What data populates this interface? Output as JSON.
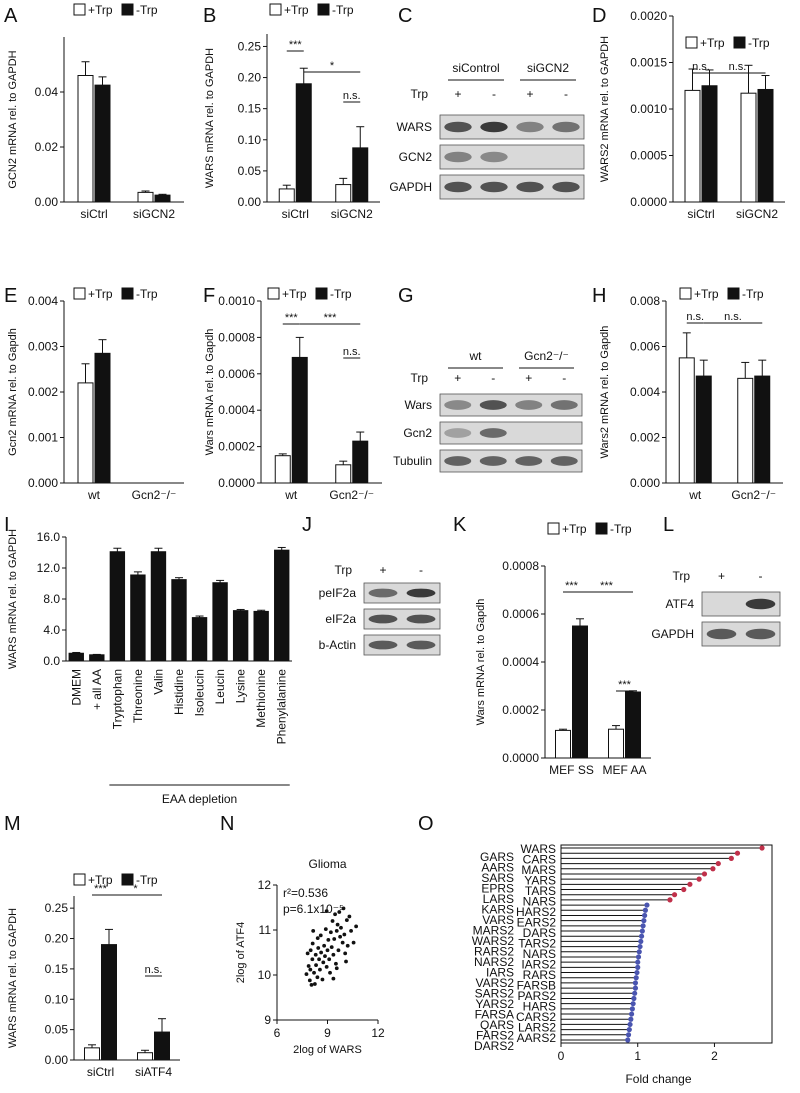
{
  "colors": {
    "filled": "#111111",
    "open": "#ffffff",
    "wars_highlight": "#d62728",
    "dot_red": "#c0304a",
    "dot_blue": "#4a55b0",
    "band": "#3a3a3a",
    "blot_bg": "#d9d9d9"
  },
  "chart_data": [
    {
      "panel": "A",
      "type": "bar",
      "ylabel": "GCN2 mRNA rel. to GAPDH",
      "categories": [
        "siCtrl",
        "siGCN2"
      ],
      "legend": [
        "+Trp",
        "-Trp"
      ],
      "ylim": [
        0,
        0.06
      ],
      "yticks": [
        "0.00",
        "0.02",
        "0.04"
      ],
      "ytick_values": [
        0,
        0.02,
        0.04
      ],
      "series": [
        {
          "name": "+Trp",
          "values": [
            0.046,
            0.0035
          ],
          "errors": [
            0.005,
            0.0005
          ]
        },
        {
          "name": "-Trp",
          "values": [
            0.0425,
            0.0025
          ],
          "errors": [
            0.003,
            0.0003
          ]
        }
      ],
      "significance": []
    },
    {
      "panel": "B",
      "type": "bar",
      "ylabel": "WARS mRNA rel. to GAPDH",
      "categories": [
        "siCtrl",
        "siGCN2"
      ],
      "legend": [
        "+Trp",
        "-Trp"
      ],
      "ylim": [
        0,
        0.27
      ],
      "yticks": [
        "0.00",
        "0.05",
        "0.10",
        "0.15",
        "0.20",
        "0.25"
      ],
      "ytick_values": [
        0,
        0.05,
        0.1,
        0.15,
        0.2,
        0.25
      ],
      "series": [
        {
          "name": "+Trp",
          "values": [
            0.021,
            0.028
          ],
          "errors": [
            0.006,
            0.01
          ]
        },
        {
          "name": "-Trp",
          "values": [
            0.19,
            0.087
          ],
          "errors": [
            0.025,
            0.034
          ]
        }
      ],
      "significance": [
        {
          "from": [
            0,
            0
          ],
          "to": [
            0,
            1
          ],
          "label": "***"
        },
        {
          "from": [
            0,
            1
          ],
          "to": [
            1,
            1
          ],
          "label": "*"
        },
        {
          "from": [
            1,
            0
          ],
          "to": [
            1,
            1
          ],
          "label": "n.s."
        }
      ]
    },
    {
      "panel": "D",
      "type": "bar",
      "ylabel": "WARS2 mRNA rel. to GAPDH",
      "categories": [
        "siCtrl",
        "siGCN2"
      ],
      "legend": [
        "+Trp",
        "-Trp"
      ],
      "ylim": [
        0,
        0.002
      ],
      "yticks": [
        "0.0000",
        "0.0005",
        "0.0010",
        "0.0015",
        "0.0020"
      ],
      "ytick_values": [
        0,
        0.0005,
        0.001,
        0.0015,
        0.002
      ],
      "series": [
        {
          "name": "+Trp",
          "values": [
            0.0012,
            0.00117
          ],
          "errors": [
            0.00023,
            0.0003
          ]
        },
        {
          "name": "-Trp",
          "values": [
            0.00125,
            0.00121
          ],
          "errors": [
            0.00017,
            0.00015
          ]
        }
      ],
      "significance": [
        {
          "from": [
            0,
            0
          ],
          "to": [
            0,
            1
          ],
          "label": "n.s."
        },
        {
          "from": [
            0,
            1
          ],
          "to": [
            1,
            1
          ],
          "label": "n.s."
        }
      ]
    },
    {
      "panel": "E",
      "type": "bar",
      "ylabel": "Gcn2 mRNA rel. to Gapdh",
      "categories": [
        "wt",
        "Gcn2⁻/⁻"
      ],
      "legend": [
        "+Trp",
        "-Trp"
      ],
      "ylim": [
        0,
        0.004
      ],
      "yticks": [
        "0.000",
        "0.001",
        "0.002",
        "0.003",
        "0.004"
      ],
      "ytick_values": [
        0,
        0.001,
        0.002,
        0.003,
        0.004
      ],
      "series": [
        {
          "name": "+Trp",
          "values": [
            0.0022,
            0
          ],
          "errors": [
            0.00042,
            0
          ]
        },
        {
          "name": "-Trp",
          "values": [
            0.00285,
            0
          ],
          "errors": [
            0.0003,
            0
          ]
        }
      ],
      "significance": []
    },
    {
      "panel": "F",
      "type": "bar",
      "ylabel": "Wars mRNA rel. to Gapdh",
      "categories": [
        "wt",
        "Gcn2⁻/⁻"
      ],
      "legend": [
        "+Trp",
        "-Trp"
      ],
      "ylim": [
        0,
        0.001
      ],
      "yticks": [
        "0.0000",
        "0.0002",
        "0.0004",
        "0.0006",
        "0.0008",
        "0.0010"
      ],
      "ytick_values": [
        0,
        0.0002,
        0.0004,
        0.0006,
        0.0008,
        0.001
      ],
      "series": [
        {
          "name": "+Trp",
          "values": [
            0.00015,
            0.0001
          ],
          "errors": [
            1e-05,
            2e-05
          ]
        },
        {
          "name": "-Trp",
          "values": [
            0.00069,
            0.00023
          ],
          "errors": [
            0.00011,
            5e-05
          ]
        }
      ],
      "significance": [
        {
          "from": [
            0,
            0
          ],
          "to": [
            0,
            1
          ],
          "label": "***"
        },
        {
          "from": [
            0,
            1
          ],
          "to": [
            1,
            1
          ],
          "label": "***"
        },
        {
          "from": [
            1,
            0
          ],
          "to": [
            1,
            1
          ],
          "label": "n.s."
        }
      ]
    },
    {
      "panel": "H",
      "type": "bar",
      "ylabel": "Wars2 mRNA rel. to Gapdh",
      "categories": [
        "wt",
        "Gcn2⁻/⁻"
      ],
      "legend": [
        "+Trp",
        "-Trp"
      ],
      "ylim": [
        0,
        0.008
      ],
      "yticks": [
        "0.000",
        "0.002",
        "0.004",
        "0.006",
        "0.008"
      ],
      "ytick_values": [
        0,
        0.002,
        0.004,
        0.006,
        0.008
      ],
      "series": [
        {
          "name": "+Trp",
          "values": [
            0.0055,
            0.0046
          ],
          "errors": [
            0.0011,
            0.0007
          ]
        },
        {
          "name": "-Trp",
          "values": [
            0.0047,
            0.0047
          ],
          "errors": [
            0.0007,
            0.0007
          ]
        }
      ],
      "significance": [
        {
          "from": [
            0,
            0
          ],
          "to": [
            0,
            1
          ],
          "label": "n.s."
        },
        {
          "from": [
            0,
            1
          ],
          "to": [
            1,
            1
          ],
          "label": "n.s."
        }
      ]
    },
    {
      "panel": "I",
      "type": "bar",
      "ylabel": "WARS mRNA rel. to GAPDH",
      "categories": [
        "DMEM",
        "+ all AA",
        "Tryptophan",
        "Threonine",
        "Valin",
        "Histidine",
        "Isoleucin",
        "Leucin",
        "Lysine",
        "Methionine",
        "Phenylalanine"
      ],
      "ylim": [
        0,
        16
      ],
      "yticks": [
        "0.0",
        "4.0",
        "8.0",
        "12.0",
        "16.0"
      ],
      "ytick_values": [
        0,
        4,
        8,
        12,
        16
      ],
      "values": [
        1.0,
        0.8,
        14.1,
        11.1,
        14.1,
        10.5,
        5.6,
        10.1,
        6.5,
        6.4,
        14.3
      ],
      "errors": [
        0.1,
        0.05,
        0.45,
        0.4,
        0.45,
        0.25,
        0.2,
        0.3,
        0.15,
        0.15,
        0.35
      ],
      "bracket_label": "EAA depletion",
      "bracket_from": 2,
      "bracket_to": 10
    },
    {
      "panel": "K",
      "type": "bar",
      "ylabel": "Wars mRNA rel. to Gapdh",
      "categories": [
        "MEF SS",
        "MEF AA"
      ],
      "legend": [
        "+Trp",
        "-Trp"
      ],
      "ylim": [
        0,
        0.0008
      ],
      "yticks": [
        "0.0000",
        "0.0002",
        "0.0004",
        "0.0006",
        "0.0008"
      ],
      "ytick_values": [
        0,
        0.0002,
        0.0004,
        0.0006,
        0.0008
      ],
      "series": [
        {
          "name": "+Trp",
          "values": [
            0.000115,
            0.00012
          ],
          "errors": [
            5e-06,
            1.5e-05
          ]
        },
        {
          "name": "-Trp",
          "values": [
            0.00055,
            0.000275
          ],
          "errors": [
            3e-05,
            5e-06
          ]
        }
      ],
      "significance": [
        {
          "from": [
            0,
            0
          ],
          "to": [
            0,
            1
          ],
          "label": "***"
        },
        {
          "from": [
            0,
            1
          ],
          "to": [
            1,
            1
          ],
          "label": "***"
        },
        {
          "from": [
            1,
            0
          ],
          "to": [
            1,
            1
          ],
          "label": "***"
        }
      ]
    },
    {
      "panel": "M",
      "type": "bar",
      "ylabel": "WARS mRNA rel. to GAPDH",
      "categories": [
        "siCtrl",
        "siATF4"
      ],
      "legend": [
        "+Trp",
        "-Trp"
      ],
      "ylim": [
        0,
        0.27
      ],
      "yticks": [
        "0.00",
        "0.05",
        "0.10",
        "0.15",
        "0.20",
        "0.25"
      ],
      "ytick_values": [
        0,
        0.05,
        0.1,
        0.15,
        0.2,
        0.25
      ],
      "series": [
        {
          "name": "+Trp",
          "values": [
            0.02,
            0.012
          ],
          "errors": [
            0.005,
            0.004
          ]
        },
        {
          "name": "-Trp",
          "values": [
            0.19,
            0.046
          ],
          "errors": [
            0.025,
            0.022
          ]
        }
      ],
      "significance": [
        {
          "from": [
            0,
            0
          ],
          "to": [
            0,
            1
          ],
          "label": "***"
        },
        {
          "from": [
            0,
            1
          ],
          "to": [
            1,
            1
          ],
          "label": "*"
        },
        {
          "from": [
            1,
            0
          ],
          "to": [
            1,
            1
          ],
          "label": "n.s."
        }
      ]
    },
    {
      "panel": "N",
      "type": "scatter",
      "title": "Glioma",
      "xlabel": "2log of WARS",
      "ylabel": "2log of ATF4",
      "xlim": [
        6,
        12
      ],
      "ylim": [
        9,
        12
      ],
      "xticks": [
        "6",
        "9",
        "12"
      ],
      "xtick_values": [
        6,
        9,
        12
      ],
      "yticks": [
        "9",
        "10",
        "11",
        "12"
      ],
      "ytick_values": [
        9,
        10,
        11,
        12
      ],
      "annotation_r2": "r²=0.536",
      "annotation_p": "p=6.1x10⁻⁵",
      "points": [
        [
          7.75,
          10.02
        ],
        [
          7.82,
          10.48
        ],
        [
          7.88,
          10.2
        ],
        [
          7.95,
          9.88
        ],
        [
          7.98,
          10.12
        ],
        [
          8.0,
          10.55
        ],
        [
          8.05,
          9.78
        ],
        [
          8.1,
          10.35
        ],
        [
          8.12,
          10.7
        ],
        [
          8.2,
          10.05
        ],
        [
          8.25,
          9.8
        ],
        [
          8.3,
          10.45
        ],
        [
          8.32,
          10.22
        ],
        [
          8.4,
          9.95
        ],
        [
          8.45,
          10.6
        ],
        [
          8.5,
          10.35
        ],
        [
          8.55,
          10.12
        ],
        [
          8.6,
          10.88
        ],
        [
          8.62,
          10.5
        ],
        [
          8.7,
          9.9
        ],
        [
          8.75,
          10.28
        ],
        [
          8.8,
          10.65
        ],
        [
          8.85,
          10.42
        ],
        [
          8.9,
          11.02
        ],
        [
          8.95,
          10.18
        ],
        [
          9.0,
          10.55
        ],
        [
          9.05,
          10.78
        ],
        [
          9.1,
          10.35
        ],
        [
          9.15,
          10.05
        ],
        [
          9.2,
          10.95
        ],
        [
          9.25,
          10.62
        ],
        [
          9.3,
          11.2
        ],
        [
          9.35,
          10.45
        ],
        [
          9.4,
          10.8
        ],
        [
          9.45,
          11.35
        ],
        [
          9.5,
          10.25
        ],
        [
          9.55,
          10.98
        ],
        [
          9.6,
          11.12
        ],
        [
          9.65,
          10.55
        ],
        [
          9.7,
          11.4
        ],
        [
          9.75,
          10.85
        ],
        [
          9.8,
          11.05
        ],
        [
          9.9,
          10.72
        ],
        [
          9.95,
          11.48
        ],
        [
          10.0,
          10.9
        ],
        [
          10.05,
          10.48
        ],
        [
          10.15,
          11.22
        ],
        [
          10.2,
          10.65
        ],
        [
          10.3,
          11.3
        ],
        [
          10.4,
          10.98
        ],
        [
          10.55,
          10.72
        ],
        [
          10.7,
          11.08
        ],
        [
          8.15,
          10.98
        ],
        [
          9.35,
          9.92
        ],
        [
          8.95,
          11.42
        ],
        [
          9.55,
          10.15
        ],
        [
          10.1,
          10.3
        ],
        [
          8.42,
          10.82
        ]
      ]
    },
    {
      "panel": "O",
      "type": "lollipop",
      "xlabel": "Fold change",
      "xlim": [
        0,
        2.75
      ],
      "xticks": [
        "0",
        "1",
        "2"
      ],
      "xtick_values": [
        0,
        1,
        2
      ],
      "labels": [
        "WARS",
        "GARS",
        "CARS",
        "AARS",
        "MARS",
        "SARS",
        "YARS",
        "EPRS",
        "TARS",
        "LARS",
        "NARS",
        "KARS",
        "HARS2",
        "VARS",
        "EARS2",
        "MARS2",
        "DARS",
        "WARS2",
        "TARS2",
        "RARS2",
        "NARS2",
        "NARS",
        "IARS2",
        "IARS",
        "RARS",
        "VARS2",
        "FARSB",
        "SARS2",
        "PARS2",
        "YARS2",
        "HARS",
        "FARSA",
        "CARS2",
        "QARS",
        "LARS2",
        "FARS2",
        "AARS2",
        "DARS2"
      ],
      "values": [
        2.62,
        2.3,
        2.22,
        2.05,
        1.98,
        1.87,
        1.8,
        1.68,
        1.6,
        1.48,
        1.42,
        1.12,
        1.1,
        1.09,
        1.08,
        1.07,
        1.06,
        1.05,
        1.04,
        1.03,
        1.02,
        1.01,
        1.0,
        1.0,
        0.99,
        0.98,
        0.97,
        0.97,
        0.96,
        0.95,
        0.94,
        0.93,
        0.92,
        0.91,
        0.9,
        0.89,
        0.88,
        0.87
      ],
      "left_labels": [
        "GARS",
        "AARS",
        "SARS",
        "EPRS",
        "LARS",
        "KARS",
        "VARS",
        "MARS2",
        "WARS2",
        "RARS2",
        "NARS2",
        "IARS",
        "VARS2",
        "SARS2",
        "YARS2",
        "FARSA",
        "QARS",
        "FARS2",
        "DARS2"
      ],
      "right_labels": [
        "WARS",
        "CARS",
        "MARS",
        "YARS",
        "TARS",
        "NARS",
        "HARS2",
        "EARS2",
        "DARS",
        "TARS2",
        "NARS",
        "IARS2",
        "RARS",
        "FARSB",
        "PARS2",
        "HARS",
        "CARS2",
        "LARS2",
        "AARS2"
      ]
    }
  ],
  "panels": {
    "A": "A",
    "B": "B",
    "C": "C",
    "D": "D",
    "E": "E",
    "F": "F",
    "G": "G",
    "H": "H",
    "I": "I",
    "J": "J",
    "K": "K",
    "L": "L",
    "M": "M",
    "N": "N",
    "O": "O"
  },
  "blots": {
    "C": {
      "groups": [
        "siControl",
        "siGCN2"
      ],
      "row_label": "Trp",
      "signs": [
        "+",
        "-",
        "+",
        "-"
      ],
      "bands": [
        "WARS",
        "GCN2",
        "GAPDH"
      ]
    },
    "G": {
      "groups": [
        "wt",
        "Gcn2⁻/⁻"
      ],
      "row_label": "Trp",
      "signs": [
        "+",
        "-",
        "+",
        "-"
      ],
      "bands": [
        "Wars",
        "Gcn2",
        "Tubulin"
      ]
    },
    "J": {
      "row_label": "Trp",
      "signs": [
        "+",
        "-"
      ],
      "bands": [
        "peIF2a",
        "eIF2a",
        "b-Actin"
      ]
    },
    "L": {
      "row_label": "Trp",
      "signs": [
        "+",
        "-"
      ],
      "bands": [
        "ATF4",
        "GAPDH"
      ]
    }
  }
}
